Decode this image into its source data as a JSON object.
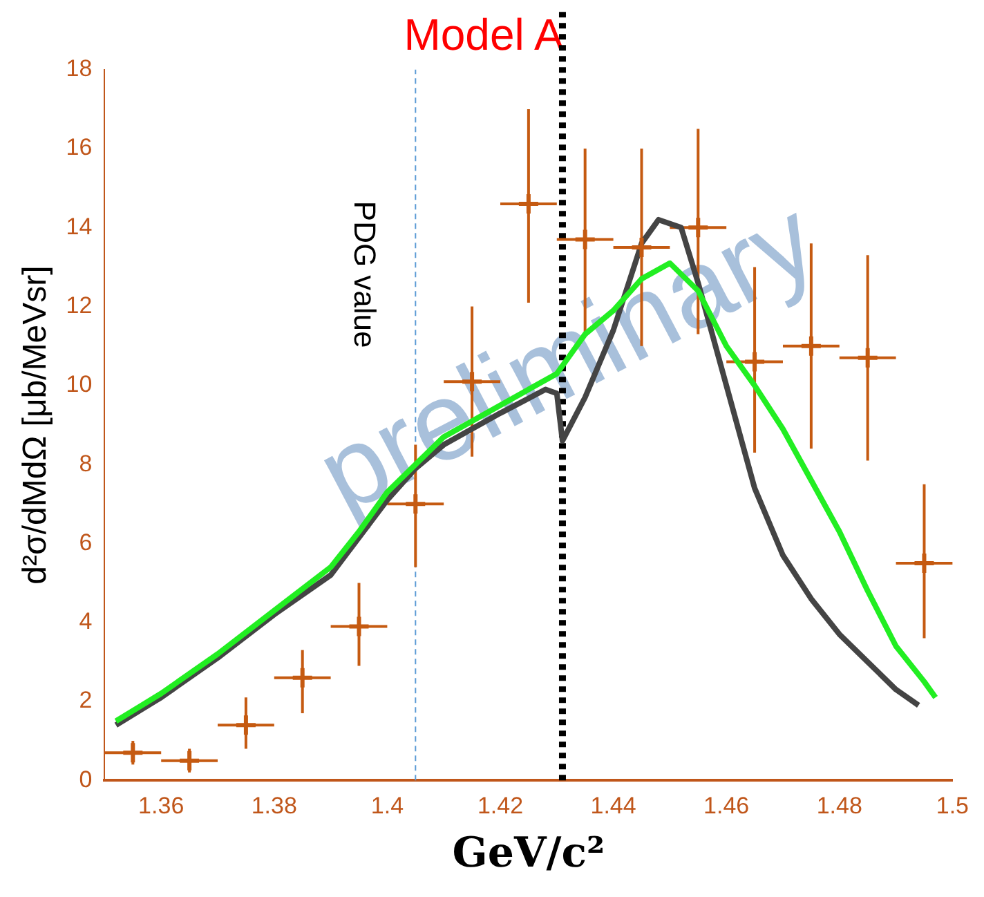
{
  "chart_data": {
    "type": "scatter",
    "title": "Model A",
    "xlabel": "GeV/c²",
    "ylabel": "d²σ/dMdΩ [μb/MeVsr]",
    "xlim": [
      1.35,
      1.5
    ],
    "xticks": [
      {
        "value": 1.35,
        "label": null
      },
      1.36,
      1.38,
      1.4,
      1.42,
      1.44,
      1.46,
      1.48,
      1.5
    ],
    "ylim": [
      0,
      18
    ],
    "yticks": [
      0,
      2,
      4,
      6,
      8,
      10,
      12,
      14,
      16,
      18
    ],
    "grid": false,
    "legend": false,
    "ref_lines": [
      {
        "axis": "x",
        "value": 1.405,
        "label": "PDG value",
        "color": "#5b9bd5",
        "line_style": "dashed"
      },
      {
        "axis": "x",
        "value": 1.431,
        "color": "#000000",
        "line_style": "dotted"
      }
    ],
    "annotations": [
      "preliminary"
    ],
    "series": [
      {
        "type": "line",
        "marker": "none",
        "color": "#22ee22",
        "x": [
          1.352,
          1.36,
          1.37,
          1.38,
          1.39,
          1.395,
          1.4,
          1.405,
          1.41,
          1.42,
          1.43,
          1.435,
          1.44,
          1.445,
          1.45,
          1.455,
          1.46,
          1.465,
          1.47,
          1.475,
          1.48,
          1.485,
          1.49,
          1.495,
          1.497
        ],
        "values": [
          1.5,
          2.2,
          3.2,
          4.3,
          5.4,
          6.3,
          7.3,
          8.0,
          8.7,
          9.5,
          10.3,
          11.3,
          11.9,
          12.7,
          13.1,
          12.4,
          11.0,
          10.0,
          8.9,
          7.6,
          6.3,
          4.8,
          3.4,
          2.5,
          2.1
        ]
      },
      {
        "type": "line",
        "marker": "none",
        "color": "#444444",
        "x": [
          1.352,
          1.36,
          1.37,
          1.38,
          1.39,
          1.4,
          1.405,
          1.41,
          1.42,
          1.428,
          1.43,
          1.431,
          1.435,
          1.44,
          1.445,
          1.448,
          1.452,
          1.455,
          1.46,
          1.465,
          1.47,
          1.475,
          1.48,
          1.485,
          1.49,
          1.494
        ],
        "values": [
          1.4,
          2.1,
          3.1,
          4.2,
          5.2,
          7.1,
          7.9,
          8.5,
          9.3,
          9.9,
          9.8,
          8.6,
          9.7,
          11.4,
          13.6,
          14.2,
          14.0,
          12.6,
          10.0,
          7.4,
          5.7,
          4.6,
          3.7,
          3.0,
          2.3,
          1.9
        ]
      },
      {
        "type": "scatter",
        "marker": "cross",
        "color": "#c55a11",
        "x": [
          1.355,
          1.365,
          1.375,
          1.385,
          1.395,
          1.405,
          1.415,
          1.425,
          1.435,
          1.445,
          1.455,
          1.465,
          1.475,
          1.485,
          1.495
        ],
        "values": [
          0.7,
          0.5,
          1.4,
          2.6,
          3.9,
          7.0,
          10.1,
          14.6,
          13.7,
          13.5,
          14.0,
          10.6,
          11.0,
          10.7,
          5.5
        ],
        "errors": [
          [
            0.4,
            1.0
          ],
          [
            0.2,
            0.8
          ],
          [
            0.8,
            2.1
          ],
          [
            1.7,
            3.3
          ],
          [
            2.9,
            5.0
          ],
          [
            5.4,
            8.5
          ],
          [
            8.2,
            12.0
          ],
          [
            12.1,
            17.0
          ],
          [
            11.3,
            16.0
          ],
          [
            11.0,
            16.0
          ],
          [
            11.3,
            16.5
          ],
          [
            8.3,
            13.0
          ],
          [
            8.4,
            13.6
          ],
          [
            8.1,
            13.3
          ],
          [
            3.6,
            7.5
          ]
        ],
        "xerrors": [
          0.005,
          0.005,
          0.005,
          0.005,
          0.005,
          0.005,
          0.005,
          0.005,
          0.005,
          0.005,
          0.005,
          0.005,
          0.005,
          0.005,
          0.005
        ]
      }
    ]
  }
}
